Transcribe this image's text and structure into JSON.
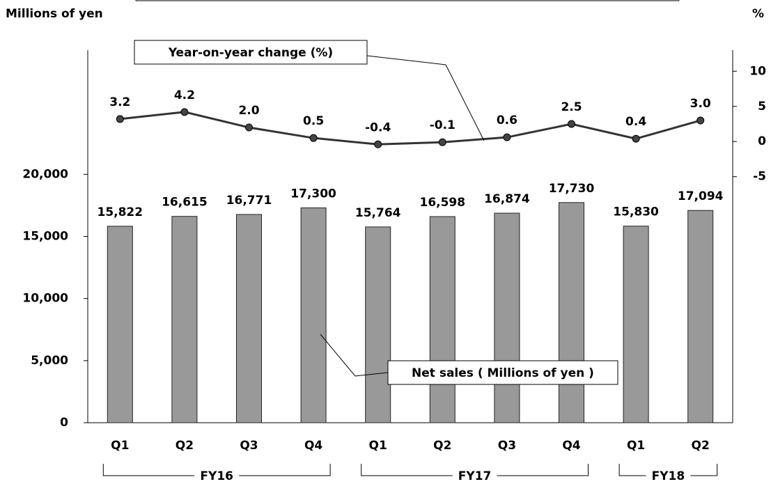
{
  "chart_data": {
    "type": "bar-line",
    "y_label": "Millions of yen",
    "y2_label": "%",
    "groups": [
      {
        "label": "FY16",
        "categories": [
          "Q1",
          "Q2",
          "Q3",
          "Q4"
        ]
      },
      {
        "label": "FY17",
        "categories": [
          "Q1",
          "Q2",
          "Q3",
          "Q4"
        ]
      },
      {
        "label": "FY18",
        "categories": [
          "Q1",
          "Q2"
        ]
      }
    ],
    "series": [
      {
        "name": "Net sales ( Millions of yen )",
        "type": "bar",
        "color": "#999999",
        "values": [
          15822,
          16615,
          16771,
          17300,
          15764,
          16598,
          16874,
          17730,
          15830,
          17094
        ],
        "value_labels": [
          "15,822",
          "16,615",
          "16,771",
          "17,300",
          "15,764",
          "16,598",
          "16,874",
          "17,730",
          "15,830",
          "17,094"
        ]
      },
      {
        "name": "Year-on-year change (%)",
        "type": "line",
        "axis": "y2",
        "color": "#333333",
        "values": [
          3.2,
          4.2,
          2.0,
          0.5,
          -0.4,
          -0.1,
          0.6,
          2.5,
          0.4,
          3.0
        ],
        "value_labels": [
          "3.2",
          "4.2",
          "2.0",
          "0.5",
          "-0.4",
          "-0.1",
          "0.6",
          "2.5",
          "0.4",
          "3.0"
        ]
      }
    ],
    "ylim": [
      0,
      30000
    ],
    "yticks": [
      0,
      {
        "value": 5000,
        "label": "5,000"
      },
      {
        "value": 10000,
        "label": "10,000"
      },
      {
        "value": 15000,
        "label": "15,000"
      },
      {
        "value": 20000,
        "label": "20,000"
      }
    ],
    "y2lim": [
      -40,
      13
    ],
    "y2ticks": [
      -5,
      0,
      5,
      10
    ]
  }
}
